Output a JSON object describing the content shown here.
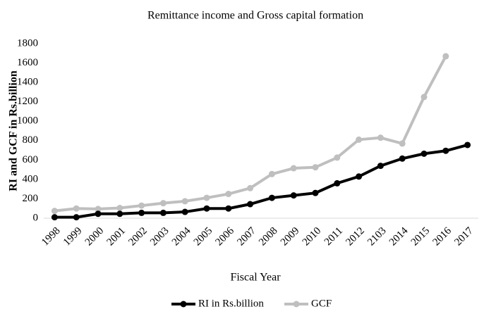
{
  "chart_data": {
    "type": "line",
    "title": "Remittance income and Gross capital formation",
    "x_label": "Fiscal Year",
    "y_label": "RI and GCF in Rs.billion",
    "categories": [
      "1998",
      "1999",
      "2000",
      "2001",
      "2002",
      "2003",
      "2004",
      "2005",
      "2006",
      "2007",
      "2008",
      "2009",
      "2010",
      "2011",
      "2012",
      "2103",
      "2014",
      "2015",
      "2016",
      "2017"
    ],
    "series": [
      {
        "name": "RI in Rs.billion",
        "color": "#000000",
        "values": [
          10,
          10,
          45,
          45,
          55,
          55,
          65,
          100,
          100,
          145,
          210,
          235,
          260,
          360,
          430,
          540,
          615,
          665,
          695,
          755
        ]
      },
      {
        "name": "GCF",
        "color": "#bfbfbf",
        "values": [
          75,
          100,
          95,
          105,
          130,
          155,
          175,
          210,
          250,
          310,
          455,
          515,
          525,
          625,
          810,
          830,
          770,
          1250,
          1670,
          null
        ]
      }
    ],
    "ylim": [
      0,
      1800
    ],
    "yticks": [
      0,
      200,
      400,
      600,
      800,
      1000,
      1200,
      1400,
      1600,
      1800
    ],
    "grid": false,
    "legend": "bottom"
  }
}
